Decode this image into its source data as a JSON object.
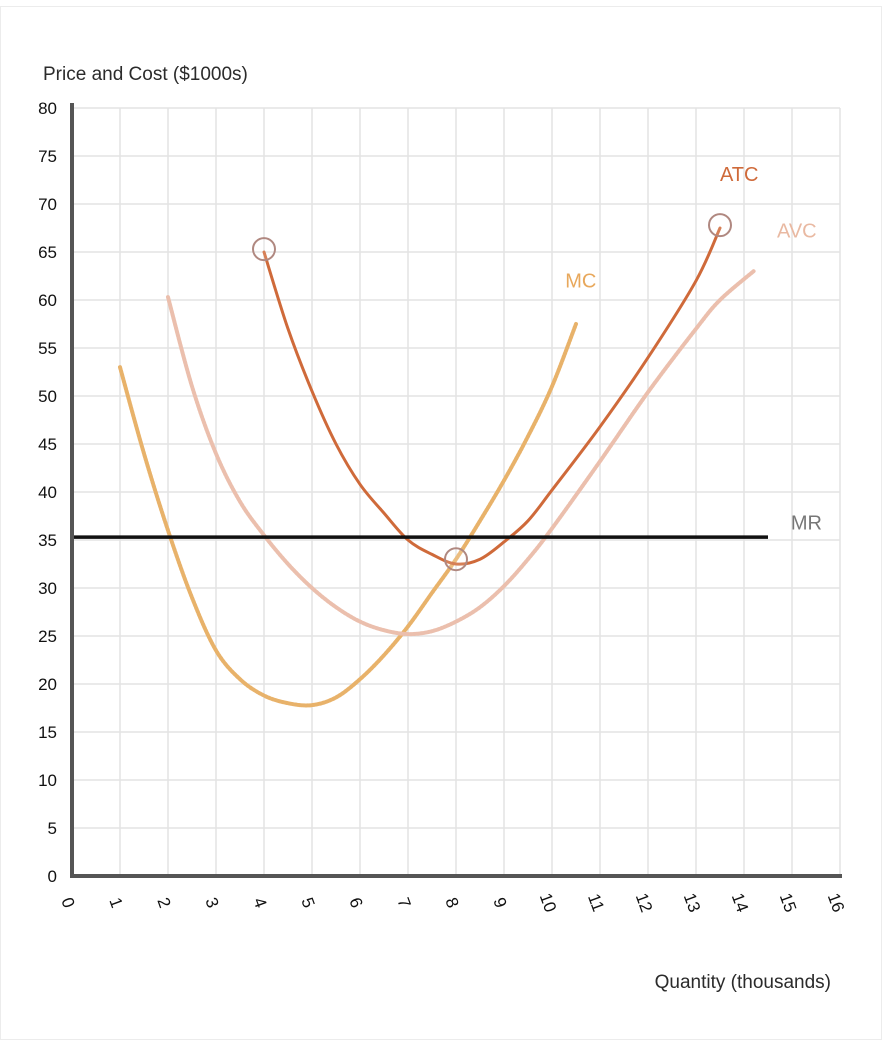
{
  "chart_data": {
    "type": "line",
    "title": "",
    "ylabel": "Price and Cost ($1000s)",
    "xlabel": "Quantity (thousands)",
    "xlim": [
      0,
      16
    ],
    "ylim": [
      0,
      80
    ],
    "xticks": [
      "0",
      "1",
      "2",
      "3",
      "4",
      "5",
      "6",
      "7",
      "8",
      "9",
      "10",
      "11",
      "12",
      "13",
      "14",
      "15",
      "16"
    ],
    "yticks": [
      "0",
      "5",
      "10",
      "15",
      "20",
      "25",
      "30",
      "35",
      "40",
      "45",
      "50",
      "55",
      "60",
      "65",
      "70",
      "75",
      "80"
    ],
    "grid": true,
    "series": [
      {
        "name": "MC",
        "color": "#e8b26a",
        "style": "dashed-soft",
        "points": [
          [
            1,
            53
          ],
          [
            1.5,
            44
          ],
          [
            2,
            36
          ],
          [
            2.5,
            29
          ],
          [
            3,
            23.5
          ],
          [
            3.5,
            20.5
          ],
          [
            4,
            18.8
          ],
          [
            4.5,
            18
          ],
          [
            5,
            17.8
          ],
          [
            5.5,
            18.6
          ],
          [
            6,
            20.5
          ],
          [
            6.5,
            23
          ],
          [
            7,
            26
          ],
          [
            7.5,
            29.5
          ],
          [
            8,
            33
          ],
          [
            8.5,
            37
          ],
          [
            9,
            41.2
          ],
          [
            9.5,
            45.8
          ],
          [
            10,
            51
          ],
          [
            10.5,
            57.5
          ]
        ]
      },
      {
        "name": "AVC",
        "color": "#ebbfad",
        "style": "dashed-soft",
        "points": [
          [
            2,
            60.3
          ],
          [
            2.5,
            51
          ],
          [
            3,
            44
          ],
          [
            3.5,
            39
          ],
          [
            4,
            35.5
          ],
          [
            4.5,
            32.5
          ],
          [
            5,
            30
          ],
          [
            5.5,
            28
          ],
          [
            6,
            26.5
          ],
          [
            6.5,
            25.6
          ],
          [
            7,
            25.2
          ],
          [
            7.5,
            25.5
          ],
          [
            8,
            26.5
          ],
          [
            8.5,
            28
          ],
          [
            9,
            30.2
          ],
          [
            9.5,
            33
          ],
          [
            10,
            36.2
          ],
          [
            11,
            43.2
          ],
          [
            12,
            50.4
          ],
          [
            13,
            57
          ],
          [
            13.5,
            60
          ],
          [
            14.2,
            63
          ]
        ]
      },
      {
        "name": "ATC",
        "color": "#cf6a3a",
        "style": "solid",
        "points": [
          [
            4,
            65
          ],
          [
            4.5,
            57
          ],
          [
            5,
            50.5
          ],
          [
            5.5,
            45
          ],
          [
            6,
            40.8
          ],
          [
            6.5,
            37.8
          ],
          [
            7,
            35
          ],
          [
            7.5,
            33.5
          ],
          [
            8,
            32.5
          ],
          [
            8.5,
            33
          ],
          [
            9,
            34.8
          ],
          [
            9.5,
            37
          ],
          [
            10,
            40.2
          ],
          [
            11,
            46.8
          ],
          [
            12,
            54
          ],
          [
            13,
            62
          ],
          [
            13.5,
            67.5
          ]
        ]
      },
      {
        "name": "MR",
        "color": "#111111",
        "style": "solid",
        "points": [
          [
            0,
            35.3
          ],
          [
            14.5,
            35.3
          ]
        ]
      }
    ],
    "markers": [
      {
        "name": "ATC-start",
        "x": 4,
        "y": 65.3
      },
      {
        "name": "ATC-min",
        "x": 8,
        "y": 33
      },
      {
        "name": "ATC-end",
        "x": 13.5,
        "y": 67.8
      }
    ],
    "labels": [
      {
        "text": "MC",
        "x": 10.6,
        "y": 61.3,
        "color": "#e8a85c"
      },
      {
        "text": "ATC",
        "x": 13.9,
        "y": 72.4,
        "color": "#cf6a3a"
      },
      {
        "text": "AVC",
        "x": 15.1,
        "y": 66.5,
        "color": "#e9b9a2"
      },
      {
        "text": "MR",
        "x": 15.3,
        "y": 36.1,
        "color": "#777777"
      }
    ]
  }
}
